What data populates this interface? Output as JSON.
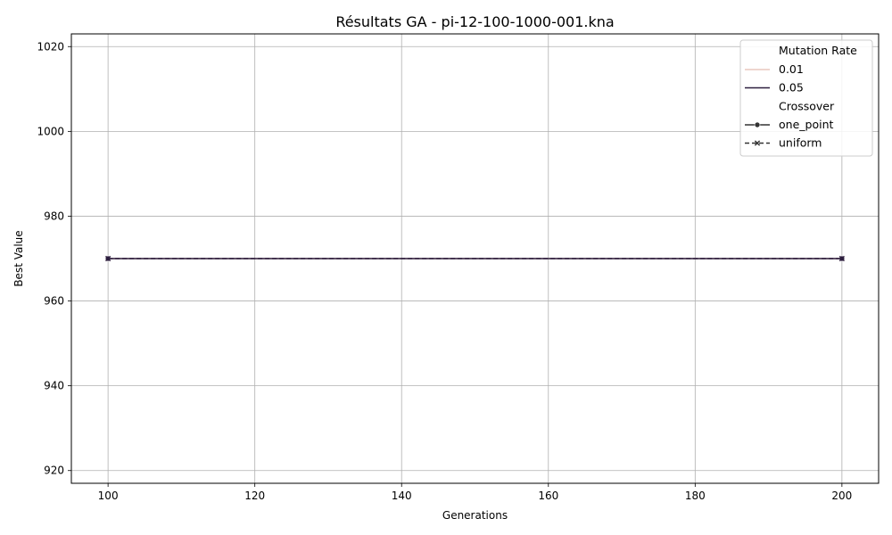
{
  "chart_data": {
    "type": "line",
    "title": "Résultats GA - pi-12-100-1000-001.kna",
    "xlabel": "Generations",
    "ylabel": "Best Value",
    "xlim": [
      95,
      205
    ],
    "ylim": [
      917,
      1023
    ],
    "xticks": [
      100,
      120,
      140,
      160,
      180,
      200
    ],
    "yticks": [
      920,
      940,
      960,
      980,
      1000,
      1020
    ],
    "xtick_labels": [
      "100",
      "120",
      "140",
      "160",
      "180",
      "200"
    ],
    "ytick_labels": [
      "920",
      "940",
      "960",
      "980",
      "1000",
      "1020"
    ],
    "grid": true,
    "legend": {
      "placement": "top-right",
      "hue_title": "Mutation Rate",
      "hue_items": [
        {
          "label": "0.01",
          "color": "#e8c7bd"
        },
        {
          "label": "0.05",
          "color": "#2d1e3e"
        }
      ],
      "style_title": "Crossover",
      "style_items": [
        {
          "label": "one_point",
          "marker": "circle",
          "dash": "solid"
        },
        {
          "label": "uniform",
          "marker": "x",
          "dash": "dashed"
        }
      ]
    },
    "series": [
      {
        "mutation_rate": "0.01",
        "crossover": "one_point",
        "color": "#e8c7bd",
        "marker": "circle",
        "dash": "solid",
        "x": [
          100,
          200
        ],
        "y": [
          970,
          970
        ]
      },
      {
        "mutation_rate": "0.01",
        "crossover": "uniform",
        "color": "#e8c7bd",
        "marker": "x",
        "dash": "dashed",
        "x": [
          100,
          200
        ],
        "y": [
          970,
          970
        ]
      },
      {
        "mutation_rate": "0.05",
        "crossover": "one_point",
        "color": "#2d1e3e",
        "marker": "circle",
        "dash": "solid",
        "x": [
          100,
          200
        ],
        "y": [
          970,
          970
        ]
      },
      {
        "mutation_rate": "0.05",
        "crossover": "uniform",
        "color": "#2d1e3e",
        "marker": "x",
        "dash": "dashed",
        "x": [
          100,
          200
        ],
        "y": [
          970,
          970
        ]
      }
    ]
  }
}
